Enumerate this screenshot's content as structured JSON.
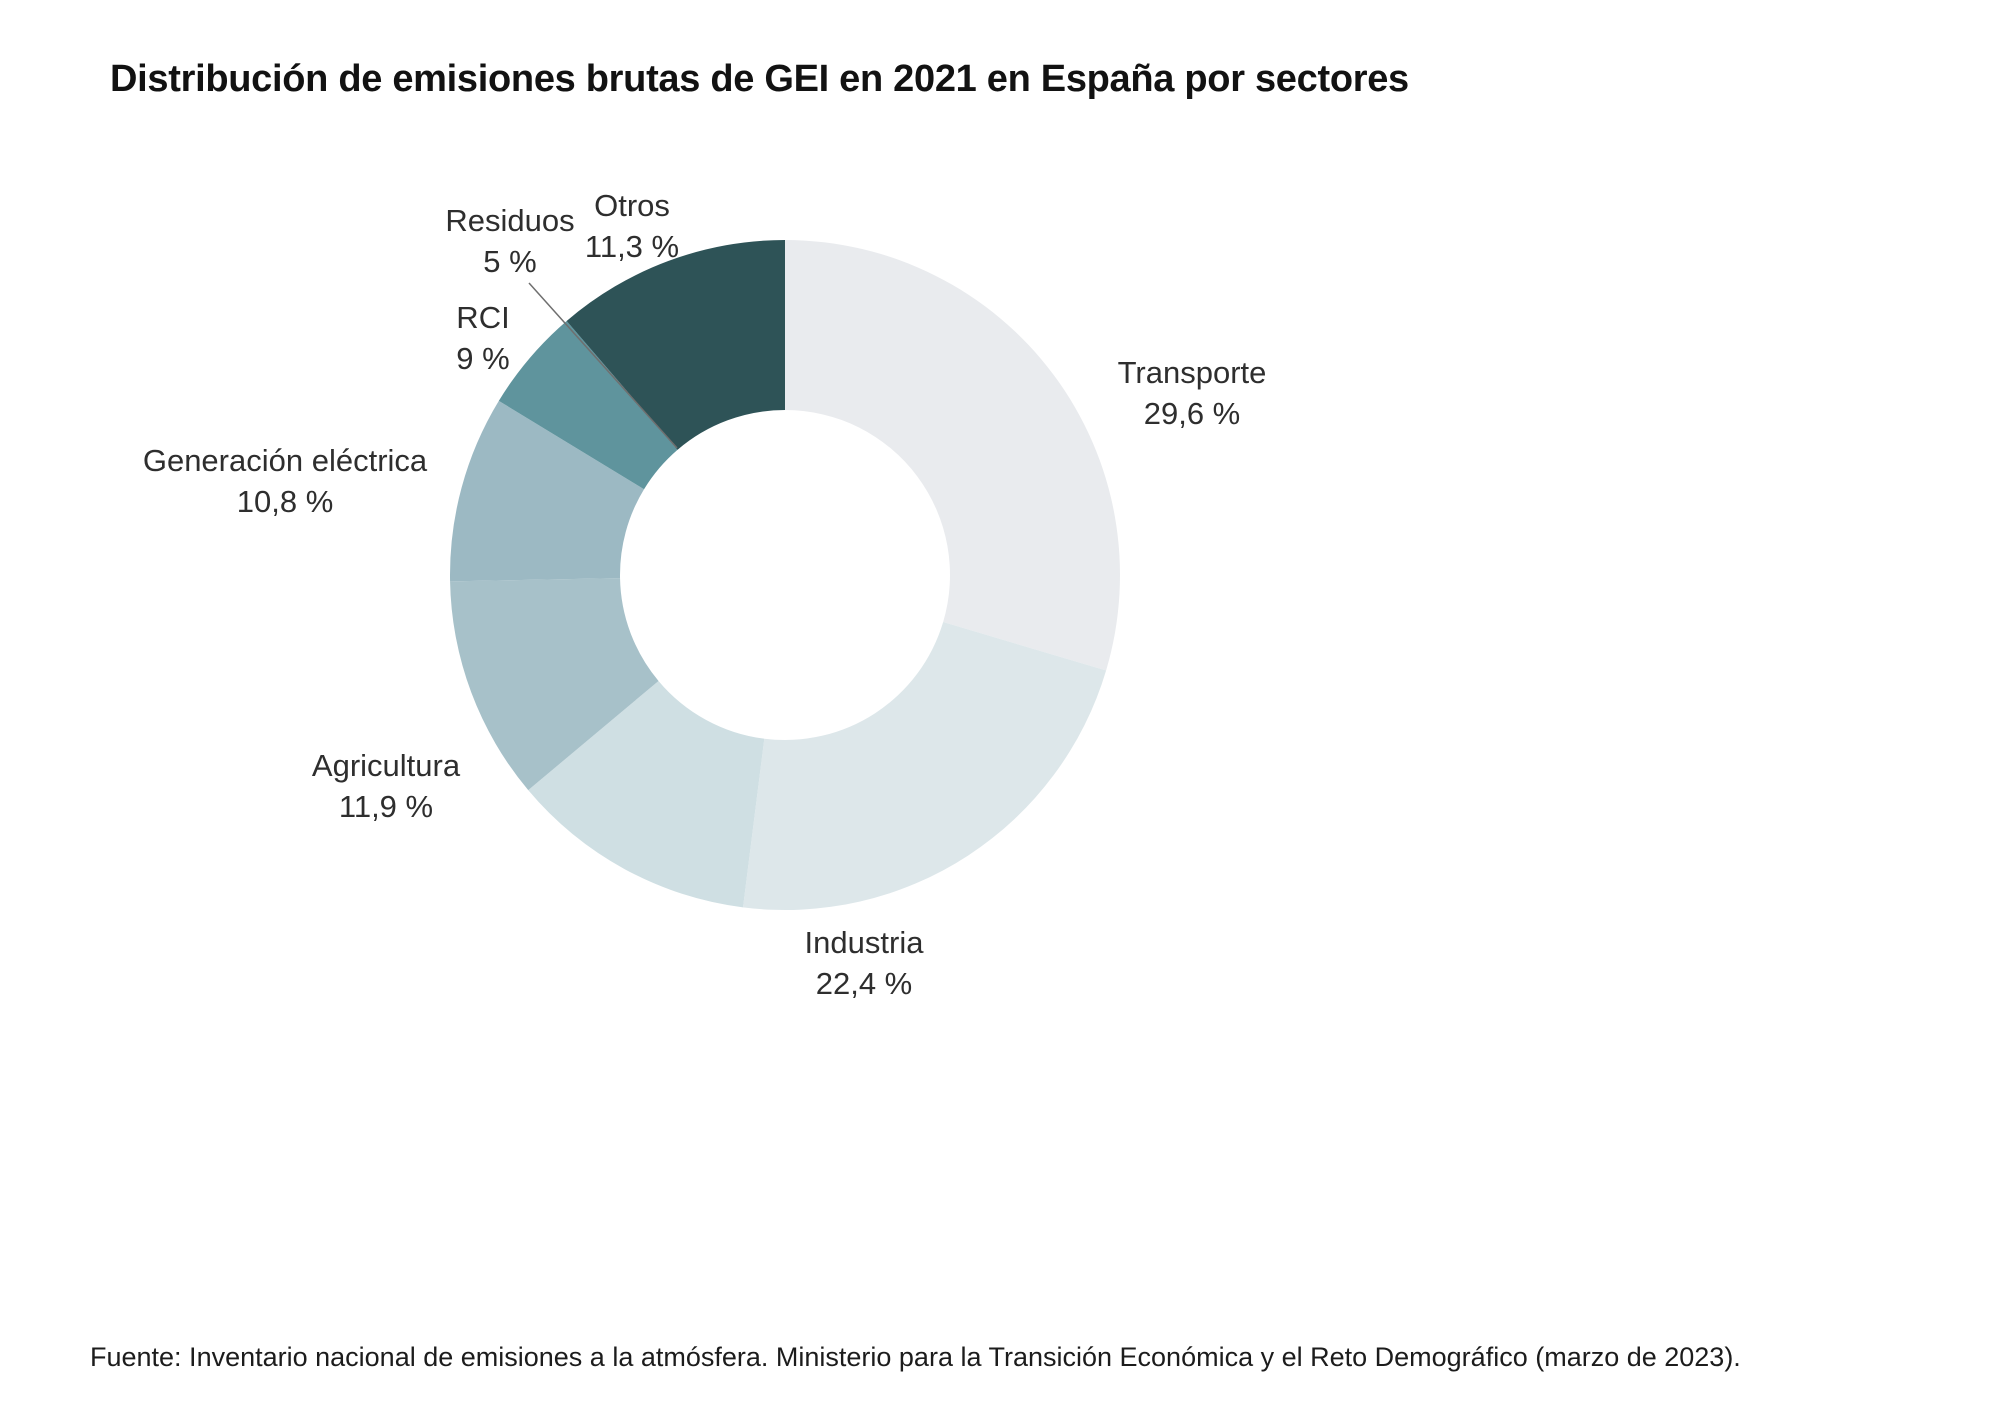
{
  "title": "Distribución de emisiones brutas de GEI en 2021 en España por sectores",
  "source": "Fuente: Inventario nacional de emisiones a la atmósfera. Ministerio para la Transición Económica y el Reto Demográfico (marzo de 2023).",
  "chart_data": {
    "type": "pie",
    "subtype": "donut",
    "title": "Distribución de emisiones brutas de GEI en 2021 en España por sectores",
    "start_angle_deg": 0,
    "direction": "clockwise",
    "hole_color": "#ffffff",
    "legend_position": "none",
    "segments": [
      {
        "label": "Transporte",
        "value": 29.6,
        "pct_label": "29,6 %",
        "color": "#e9ebee"
      },
      {
        "label": "Industria",
        "value": 22.4,
        "pct_label": "22,4 %",
        "color": "#dde7ea"
      },
      {
        "label": "Agricultura",
        "value": 11.9,
        "pct_label": "11,9 %",
        "color": "#cfdfe3"
      },
      {
        "label": "Generación eléctrica",
        "value": 10.8,
        "pct_label": "10,8 %",
        "color": "#a7c1c9"
      },
      {
        "label": "RCI",
        "value": 9,
        "pct_label": "9 %",
        "color": "#9cb9c3"
      },
      {
        "label": "Residuos",
        "value": 5,
        "pct_label": "5 %",
        "color": "#5f949d"
      },
      {
        "label": "Otros",
        "value": 11.3,
        "pct_label": "11,3 %",
        "color": "#2e5357"
      }
    ]
  }
}
